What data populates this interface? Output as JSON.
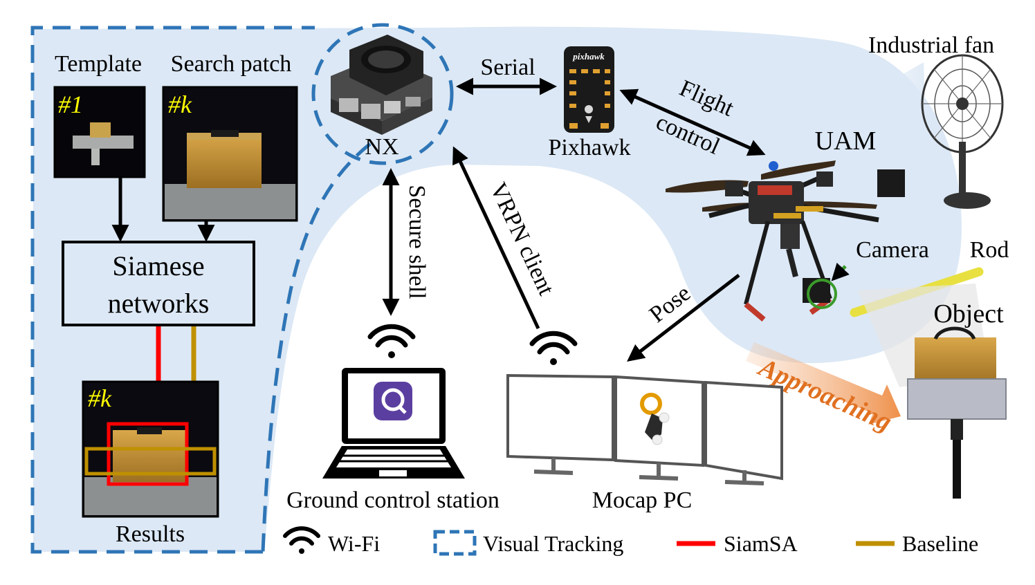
{
  "panel": {
    "template_label": "Template",
    "search_label": "Search patch",
    "template_frame_id": "#1",
    "search_frame_id": "#k",
    "network_line1": "Siamese",
    "network_line2": "networks",
    "result_frame_id": "#k",
    "results_label": "Results"
  },
  "hardware": {
    "nx_label": "NX",
    "pixhawk_label": "Pixhawk",
    "pixhawk_logo_text": "pixhawk",
    "uam_label": "UAM",
    "fan_label": "Industrial fan",
    "camera_label": "Camera",
    "rod_label": "Rod",
    "object_label": "Object",
    "gcs_label": "Ground control station",
    "mocap_label": "Mocap PC"
  },
  "links": {
    "serial": "Serial",
    "flight_line1": "Flight",
    "flight_line2": "control",
    "secure_shell": "Secure shell",
    "vrpn": "VRPN client",
    "pose": "Pose",
    "approaching": "Approaching"
  },
  "legend": {
    "wifi": "Wi-Fi",
    "visual_tracking": "Visual Tracking",
    "siamsa": "SiamSA",
    "baseline": "Baseline"
  },
  "colors": {
    "tracking_blue": "#2e75b6",
    "region_fill": "#dce8f5",
    "siamsa_red": "#ff0000",
    "baseline_gold": "#bf9000",
    "approach_orange": "#e07020",
    "camera_green": "#3a9a2a",
    "frame_id_yellow": "#ffff00"
  }
}
